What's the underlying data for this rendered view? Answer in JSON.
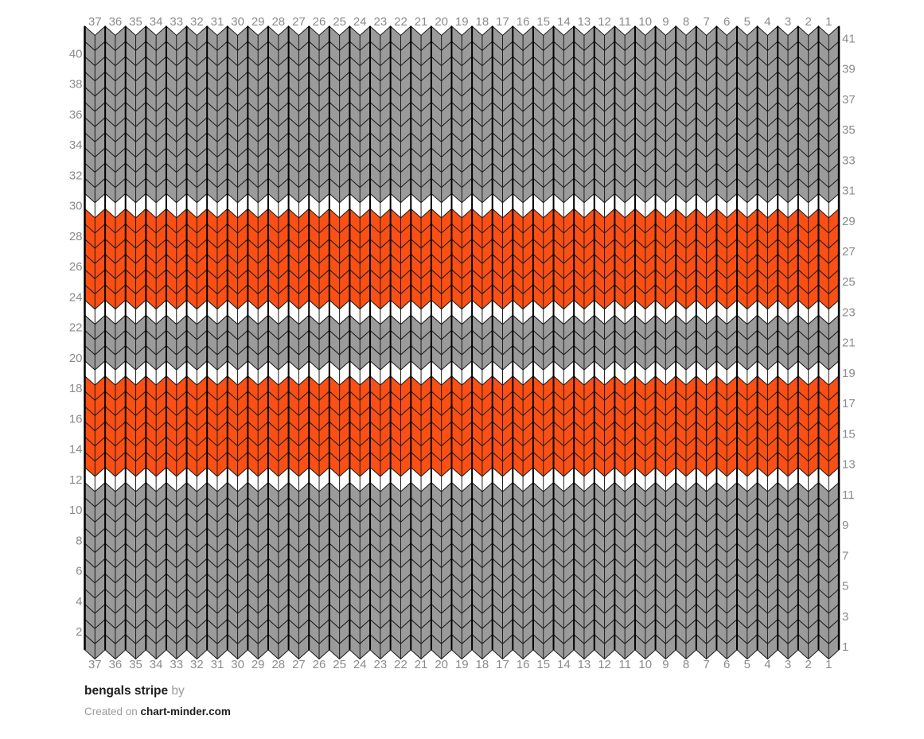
{
  "page": {
    "background": "#ffffff"
  },
  "footer": {
    "title": "bengals stripe",
    "byline": " by",
    "created_prefix": "Created on ",
    "site": "chart-minder.com"
  },
  "chart_data": {
    "type": "heatmap",
    "subtype": "knitting-chart",
    "title": "bengals stripe",
    "stitch_style": "knit-v-chevron",
    "columns": 37,
    "rows": 41,
    "col_labels_top": [
      "37",
      "36",
      "35",
      "34",
      "33",
      "32",
      "31",
      "30",
      "29",
      "28",
      "27",
      "26",
      "25",
      "24",
      "23",
      "22",
      "21",
      "20",
      "19",
      "18",
      "17",
      "16",
      "15",
      "14",
      "13",
      "12",
      "11",
      "10",
      "9",
      "8",
      "7",
      "6",
      "5",
      "4",
      "3",
      "2",
      "1"
    ],
    "col_labels_bottom": [
      "37",
      "36",
      "35",
      "34",
      "33",
      "32",
      "31",
      "30",
      "29",
      "28",
      "27",
      "26",
      "25",
      "24",
      "23",
      "22",
      "21",
      "20",
      "19",
      "18",
      "17",
      "16",
      "15",
      "14",
      "13",
      "12",
      "11",
      "10",
      "9",
      "8",
      "7",
      "6",
      "5",
      "4",
      "3",
      "2",
      "1"
    ],
    "row_labels_left": [
      "40",
      "38",
      "36",
      "34",
      "32",
      "30",
      "28",
      "26",
      "24",
      "22",
      "20",
      "18",
      "16",
      "14",
      "12",
      "10",
      "8",
      "6",
      "4",
      "2"
    ],
    "row_labels_right": [
      "41",
      "39",
      "37",
      "35",
      "33",
      "31",
      "29",
      "27",
      "25",
      "23",
      "21",
      "19",
      "17",
      "15",
      "13",
      "11",
      "9",
      "7",
      "5",
      "3",
      "1"
    ],
    "palette": {
      "gray": "#9B9B9B",
      "white": "#FFFFFF",
      "orange": "#FB4F14"
    },
    "row_colors_top_to_bottom": [
      "gray",
      "gray",
      "gray",
      "gray",
      "gray",
      "gray",
      "gray",
      "gray",
      "gray",
      "gray",
      "gray",
      "white",
      "orange",
      "orange",
      "orange",
      "orange",
      "orange",
      "orange",
      "white",
      "gray",
      "gray",
      "gray",
      "white",
      "orange",
      "orange",
      "orange",
      "orange",
      "orange",
      "orange",
      "white",
      "gray",
      "gray",
      "gray",
      "gray",
      "gray",
      "gray",
      "gray",
      "gray",
      "gray",
      "gray",
      "gray"
    ],
    "stripes_bottom_to_top": [
      {
        "rows": "1-11",
        "color": "gray"
      },
      {
        "rows": "12",
        "color": "white"
      },
      {
        "rows": "13-18",
        "color": "orange"
      },
      {
        "rows": "19",
        "color": "white"
      },
      {
        "rows": "20-22",
        "color": "gray"
      },
      {
        "rows": "23",
        "color": "white"
      },
      {
        "rows": "24-29",
        "color": "orange"
      },
      {
        "rows": "30",
        "color": "white"
      },
      {
        "rows": "31-41",
        "color": "gray"
      }
    ],
    "axis_text_color": "#8B8B8B",
    "line_color": "#1C1C1C",
    "grid_boundary_color": "#000000",
    "legend_position": "none",
    "grid": true
  }
}
